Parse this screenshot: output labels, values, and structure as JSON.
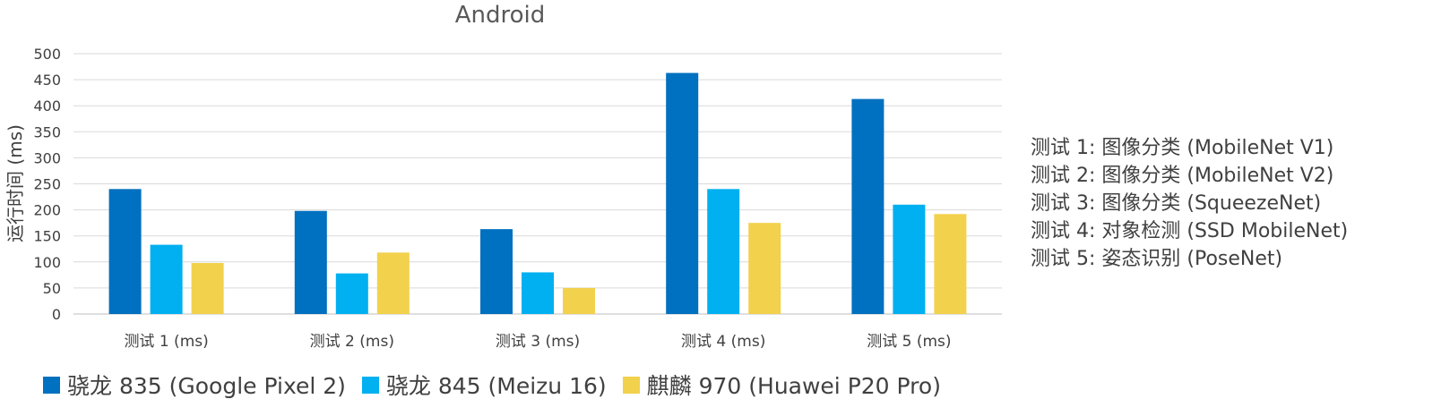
{
  "chart_data": {
    "type": "bar",
    "title": "Android",
    "ylabel": "运行时间 (ms)",
    "xlabel": "",
    "ylim": [
      0,
      500
    ],
    "yticks": [
      0,
      50,
      100,
      150,
      200,
      250,
      300,
      350,
      400,
      450,
      500
    ],
    "grid": true,
    "legend_position": "bottom",
    "categories": [
      "测试 1 (ms)",
      "测试 2 (ms)",
      "测试 3 (ms)",
      "测试 4 (ms)",
      "测试 5 (ms)"
    ],
    "series": [
      {
        "name": "骁龙 835 (Google Pixel 2)",
        "color": "#0070C0",
        "values": [
          240,
          198,
          163,
          463,
          413
        ]
      },
      {
        "name": "骁龙 845 (Meizu 16)",
        "color": "#00B0F0",
        "values": [
          133,
          78,
          80,
          240,
          210
        ]
      },
      {
        "name": "麒麟 970 (Huawei P20 Pro)",
        "color": "#F2D14D",
        "values": [
          98,
          118,
          50,
          175,
          192
        ]
      }
    ],
    "annotations": [
      "测试 1: 图像分类 (MobileNet V1)",
      "测试 2: 图像分类 (MobileNet V2)",
      "测试 3: 图像分类 (SqueezeNet)",
      "测试 4: 对象检测 (SSD MobileNet)",
      "测试 5: 姿态识别 (PoseNet)"
    ]
  }
}
